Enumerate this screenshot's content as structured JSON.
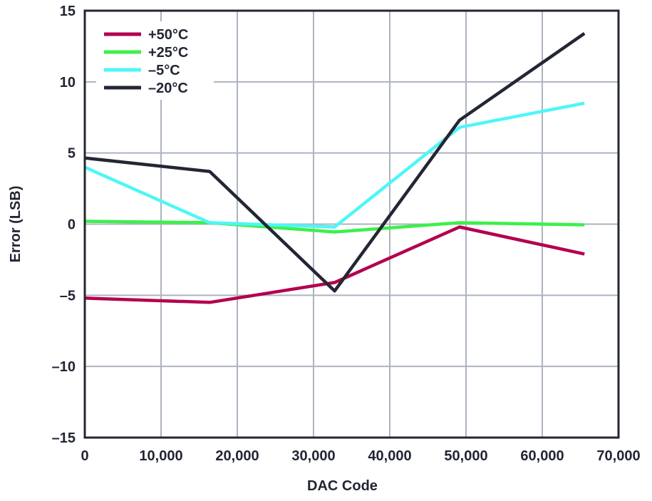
{
  "chart_data": {
    "type": "line",
    "title": "",
    "xlabel": "DAC Code",
    "ylabel": "Error (LSB)",
    "xlim": [
      0,
      70000
    ],
    "ylim": [
      -15,
      15
    ],
    "x_ticks": [
      0,
      10000,
      20000,
      30000,
      40000,
      50000,
      60000,
      70000
    ],
    "x_tick_labels": [
      "0",
      "10,000",
      "20,000",
      "30,000",
      "40,000",
      "50,000",
      "60,000",
      "70,000"
    ],
    "y_ticks": [
      -15,
      -10,
      -5,
      0,
      5,
      10,
      15
    ],
    "y_tick_labels": [
      "–15",
      "–10",
      "–5",
      "0",
      "5",
      "10",
      "15"
    ],
    "grid": true,
    "legend_position": "top-left",
    "series": [
      {
        "name": "+50°C",
        "color": "#b3004f",
        "x": [
          0,
          16384,
          32768,
          49152,
          65535
        ],
        "y": [
          -5.2,
          -5.5,
          -4.1,
          -0.2,
          -2.1
        ]
      },
      {
        "name": "+25°C",
        "color": "#3cf04a",
        "x": [
          0,
          16384,
          32768,
          49152,
          65535
        ],
        "y": [
          0.2,
          0.1,
          -0.55,
          0.1,
          -0.05
        ]
      },
      {
        "name": "–5°C",
        "color": "#4ef6f7",
        "x": [
          0,
          16384,
          32768,
          49152,
          65535
        ],
        "y": [
          4.0,
          0.1,
          -0.2,
          6.8,
          8.5
        ]
      },
      {
        "name": "–20°C",
        "color": "#232734",
        "x": [
          0,
          16384,
          32768,
          49152,
          65535
        ],
        "y": [
          4.65,
          3.7,
          -4.7,
          7.3,
          13.4
        ]
      }
    ]
  }
}
